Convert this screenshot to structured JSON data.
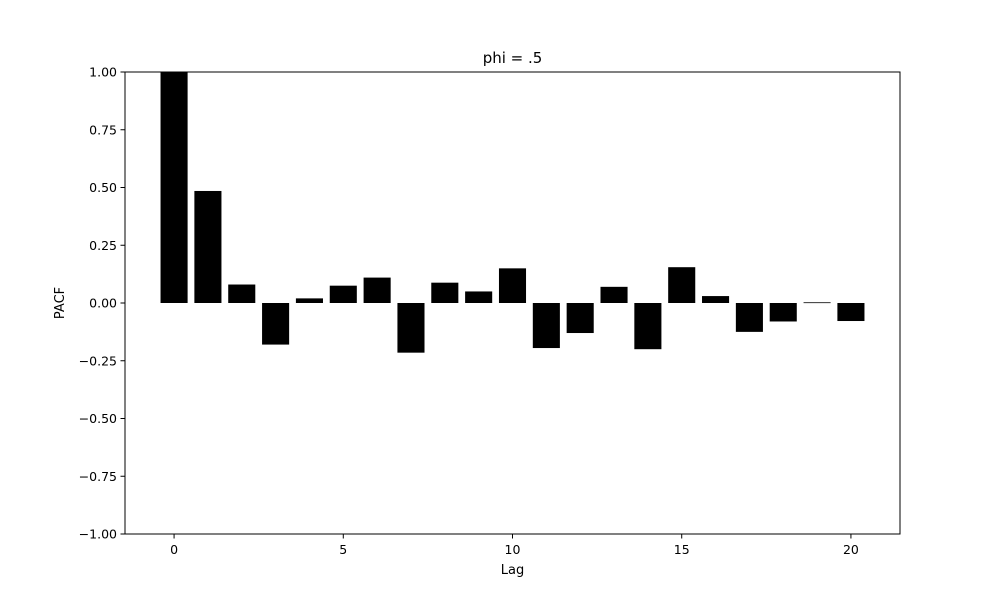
{
  "chart_data": {
    "type": "bar",
    "title": "phi = .5",
    "xlabel": "Lag",
    "ylabel": "PACF",
    "x": [
      0,
      1,
      2,
      3,
      4,
      5,
      6,
      7,
      8,
      9,
      10,
      11,
      12,
      13,
      14,
      15,
      16,
      17,
      18,
      19,
      20
    ],
    "values": [
      1.0,
      0.485,
      0.08,
      -0.18,
      0.02,
      0.075,
      0.11,
      -0.215,
      0.088,
      0.05,
      0.15,
      -0.195,
      -0.13,
      0.07,
      -0.2,
      0.155,
      0.03,
      -0.125,
      -0.08,
      0.003,
      -0.078
    ],
    "xlim": [
      -1.45,
      21.45
    ],
    "ylim": [
      -1.0,
      1.0
    ],
    "xticks": [
      0,
      5,
      10,
      15,
      20
    ],
    "xtick_labels": [
      "0",
      "5",
      "10",
      "15",
      "20"
    ],
    "yticks": [
      -1.0,
      -0.75,
      -0.5,
      -0.25,
      0.0,
      0.25,
      0.5,
      0.75,
      1.0
    ],
    "ytick_labels": [
      "−1.00",
      "−0.75",
      "−0.50",
      "−0.25",
      "0.00",
      "0.25",
      "0.50",
      "0.75",
      "1.00"
    ],
    "bar_width": 0.8,
    "bar_color": "#000000",
    "grid": false,
    "legend": "none"
  }
}
